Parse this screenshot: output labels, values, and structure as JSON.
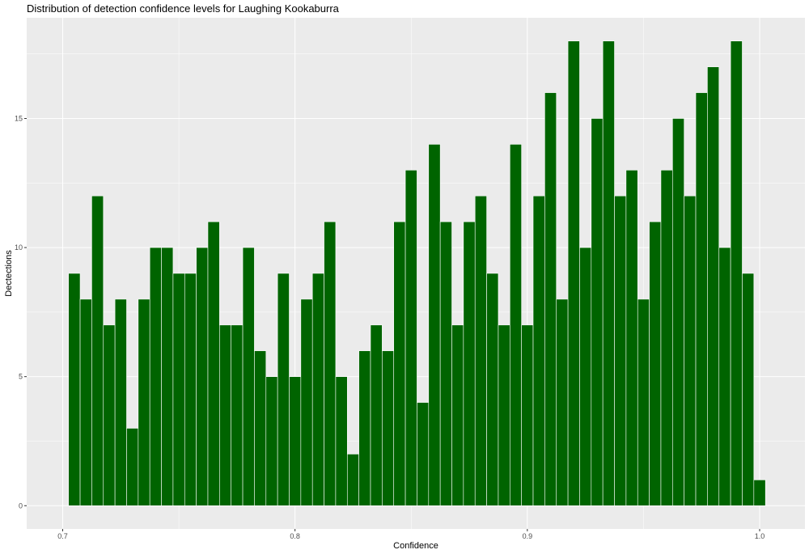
{
  "chart_data": {
    "type": "bar",
    "title": "Distribution of detection confidence levels for Laughing Kookaburra",
    "xlabel": "Confidence",
    "ylabel": "Dectections",
    "x_ticks": [
      0.7,
      0.8,
      0.9,
      1.0
    ],
    "x_tick_labels": [
      "0.7",
      "0.8",
      "0.9",
      "1.0"
    ],
    "y_ticks": [
      0,
      5,
      10,
      15
    ],
    "y_tick_labels": [
      "0",
      "5",
      "10",
      "15"
    ],
    "xlim": [
      0.6845,
      1.0195
    ],
    "ylim": [
      -0.9,
      18.9
    ],
    "bin_start": 0.7025,
    "bin_width": 0.005,
    "values": [
      9,
      8,
      12,
      7,
      8,
      3,
      8,
      10,
      10,
      9,
      9,
      10,
      11,
      7,
      7,
      10,
      6,
      5,
      9,
      5,
      8,
      9,
      11,
      5,
      2,
      6,
      7,
      6,
      11,
      13,
      4,
      14,
      11,
      7,
      11,
      12,
      9,
      7,
      14,
      7,
      12,
      16,
      8,
      18,
      10,
      15,
      18,
      12,
      13,
      8,
      11,
      13,
      15,
      12,
      16,
      17,
      10,
      18,
      9,
      1
    ],
    "bar_color": "#006400",
    "panel_color": "#ebebeb",
    "grid": true,
    "legend": "none"
  }
}
